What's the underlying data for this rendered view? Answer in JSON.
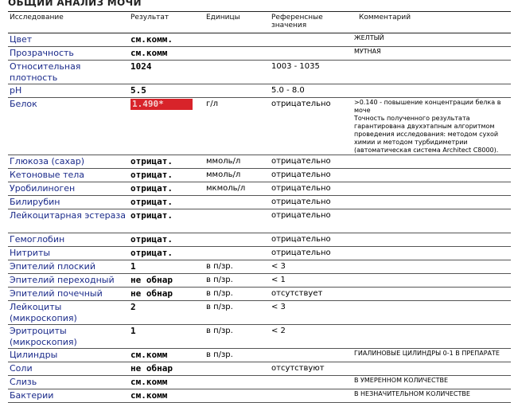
{
  "title": "ОБЩИЙ АНАЛИЗ МОЧИ",
  "headers": [
    "Исследование",
    "Результат",
    "Единицы",
    "Референсные значения",
    "Комментарий"
  ],
  "highlight_color": "#d8232a",
  "rows": [
    {
      "name": "Цвет",
      "result": "см.комм.",
      "unit": "",
      "ref": "",
      "comment": "ЖЕЛТЫЙ"
    },
    {
      "name": "Прозрачность",
      "result": "см.комм",
      "unit": "",
      "ref": "",
      "comment": "МУТНАЯ"
    },
    {
      "name": "Относительная плотность",
      "result": "1024",
      "unit": "",
      "ref": "1003 - 1035",
      "comment": ""
    },
    {
      "name": "pH",
      "result": "5.5",
      "unit": "",
      "ref": "5.0 - 8.0",
      "comment": ""
    },
    {
      "name": "Белок",
      "result": "1.490*",
      "unit": "г/л",
      "ref": "отрицательно",
      "comment": ">0.140 - повышение концентрации белка в моче\nТочность полученного результата гарантирована двухэтапным алгоритмом проведения исследования: методом сухой химии и методом турбидиметрии (автоматическая система Architect C8000).",
      "flagged": true
    },
    {
      "name": "Глюкоза (сахар)",
      "result": "отрицат.",
      "unit": "ммоль/л",
      "ref": "отрицательно",
      "comment": ""
    },
    {
      "name": "Кетоновые тела",
      "result": "отрицат.",
      "unit": "ммоль/л",
      "ref": "отрицательно",
      "comment": ""
    },
    {
      "name": "Уробилиноген",
      "result": "отрицат.",
      "unit": "мкмоль/л",
      "ref": "отрицательно",
      "comment": ""
    },
    {
      "name": "Билирубин",
      "result": "отрицат.",
      "unit": "",
      "ref": "отрицательно",
      "comment": ""
    },
    {
      "name": "Лейкоцитарная эстераза",
      "result": "отрицат.",
      "unit": "",
      "ref": "отрицательно",
      "comment": ""
    },
    {
      "name": "Гемоглобин",
      "result": "отрицат.",
      "unit": "",
      "ref": "отрицательно",
      "comment": ""
    },
    {
      "name": "Нитриты",
      "result": "отрицат.",
      "unit": "",
      "ref": "отрицательно",
      "comment": ""
    },
    {
      "name": "Эпителий плоский",
      "result": "1",
      "unit": "в п/зр.",
      "ref": "< 3",
      "comment": ""
    },
    {
      "name": "Эпителий переходный",
      "result": "не обнар",
      "unit": "в п/зр.",
      "ref": "< 1",
      "comment": ""
    },
    {
      "name": "Эпителий почечный",
      "result": "не обнар",
      "unit": "в п/зр.",
      "ref": "отсутствует",
      "comment": ""
    },
    {
      "name": "Лейкоциты (микроскопия)",
      "result": "2",
      "unit": "в п/зр.",
      "ref": "< 3",
      "comment": ""
    },
    {
      "name": "Эритроциты (микроскопия)",
      "result": "1",
      "unit": "в п/зр.",
      "ref": "< 2",
      "comment": ""
    },
    {
      "name": "Цилиндры",
      "result": "см.комм",
      "unit": "в п/зр.",
      "ref": "",
      "comment": "ГИАЛИНОВЫЕ ЦИЛИНДРЫ 0-1 В ПРЕПАРАТЕ"
    },
    {
      "name": "Соли",
      "result": "не обнар",
      "unit": "",
      "ref": "отсутствуют",
      "comment": ""
    },
    {
      "name": "Слизь",
      "result": "см.комм",
      "unit": "",
      "ref": "",
      "comment": "В УМЕРЕННОМ КОЛИЧЕСТВЕ"
    },
    {
      "name": "Бактерии",
      "result": "см.комм",
      "unit": "",
      "ref": "",
      "comment": "В НЕЗНАЧИТЕЛЬНОМ КОЛИЧЕСТВЕ"
    }
  ]
}
